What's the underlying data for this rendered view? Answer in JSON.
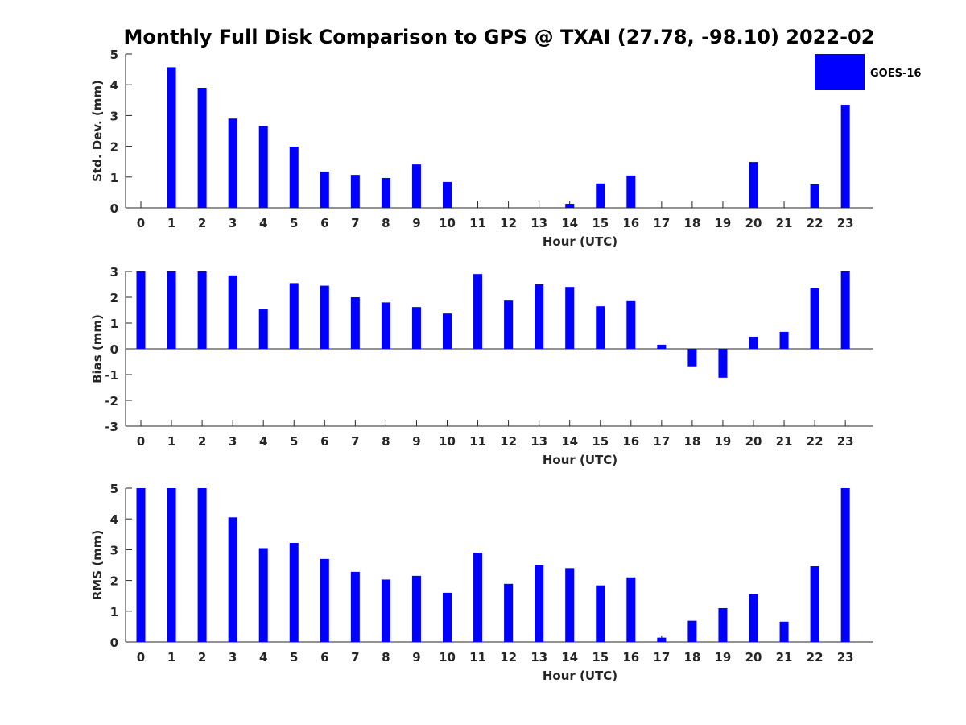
{
  "title": "Monthly Full Disk Comparison to GPS @ TXAI (27.78, -98.10) 2022-02",
  "legend": {
    "label": "GOES-16",
    "color": "#0000ff",
    "placement": "top-right"
  },
  "chart_data": [
    {
      "type": "bar",
      "name": "std-dev",
      "ylabel": "Std. Dev. (mm)",
      "xlabel": "Hour (UTC)",
      "ylim": [
        0,
        5
      ],
      "yticks": [
        0,
        1,
        2,
        3,
        4,
        5
      ],
      "categories": [
        "0",
        "1",
        "2",
        "3",
        "4",
        "5",
        "6",
        "7",
        "8",
        "9",
        "10",
        "11",
        "12",
        "13",
        "14",
        "15",
        "16",
        "17",
        "18",
        "19",
        "20",
        "21",
        "22",
        "23"
      ],
      "values": [
        0,
        4.57,
        3.9,
        2.9,
        2.66,
        1.99,
        1.18,
        1.07,
        0.97,
        1.41,
        0.84,
        0,
        0,
        0,
        0.13,
        0.79,
        1.05,
        0,
        0,
        0,
        1.49,
        0,
        0.76,
        3.35
      ],
      "series_name": "GOES-16"
    },
    {
      "type": "bar",
      "name": "bias",
      "ylabel": "Bias (mm)",
      "xlabel": "Hour (UTC)",
      "ylim": [
        -3,
        3
      ],
      "yticks": [
        -3,
        -2,
        -1,
        0,
        1,
        2,
        3
      ],
      "categories": [
        "0",
        "1",
        "2",
        "3",
        "4",
        "5",
        "6",
        "7",
        "8",
        "9",
        "10",
        "11",
        "12",
        "13",
        "14",
        "15",
        "16",
        "17",
        "18",
        "19",
        "20",
        "21",
        "22",
        "23"
      ],
      "values": [
        3.0,
        3.0,
        3.0,
        2.85,
        1.53,
        2.55,
        2.45,
        2.0,
        1.8,
        1.62,
        1.37,
        2.9,
        1.87,
        2.5,
        2.4,
        1.65,
        1.85,
        0.16,
        -0.68,
        -1.12,
        0.47,
        0.66,
        2.35,
        3.0
      ],
      "series_name": "GOES-16"
    },
    {
      "type": "bar",
      "name": "rms",
      "ylabel": "RMS (mm)",
      "xlabel": "Hour (UTC)",
      "ylim": [
        0,
        5
      ],
      "yticks": [
        0,
        1,
        2,
        3,
        4,
        5
      ],
      "categories": [
        "0",
        "1",
        "2",
        "3",
        "4",
        "5",
        "6",
        "7",
        "8",
        "9",
        "10",
        "11",
        "12",
        "13",
        "14",
        "15",
        "16",
        "17",
        "18",
        "19",
        "20",
        "21",
        "22",
        "23"
      ],
      "values": [
        5.0,
        5.0,
        5.0,
        4.05,
        3.05,
        3.22,
        2.7,
        2.28,
        2.03,
        2.15,
        1.6,
        2.9,
        1.89,
        2.49,
        2.4,
        1.84,
        2.1,
        0.14,
        0.69,
        1.1,
        1.55,
        0.66,
        2.46,
        5.0
      ],
      "series_name": "GOES-16"
    }
  ]
}
